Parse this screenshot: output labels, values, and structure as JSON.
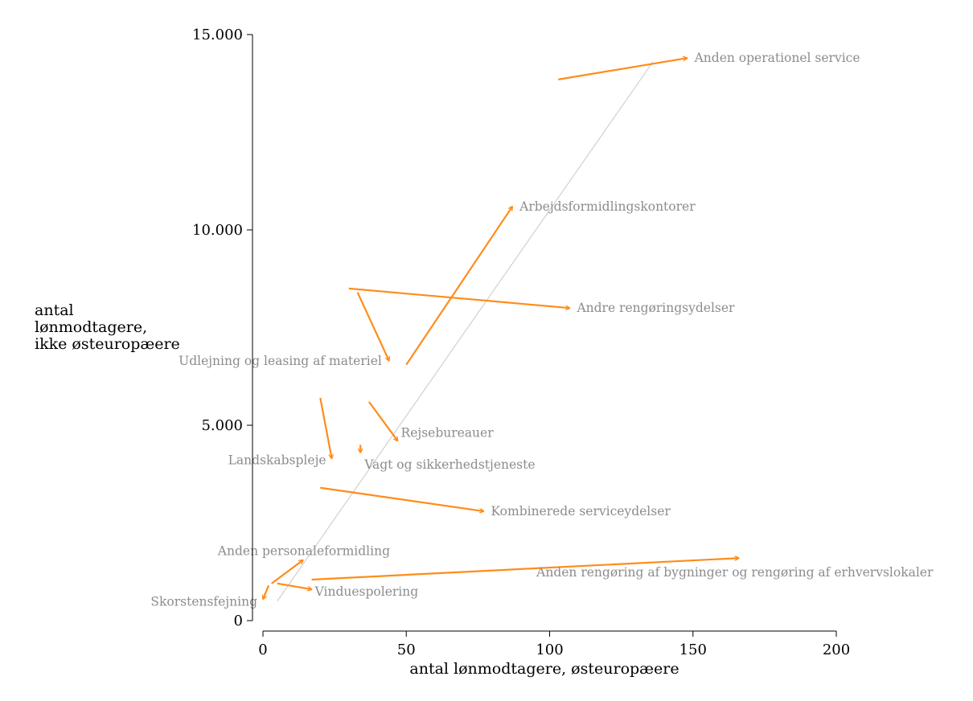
{
  "chart_data": {
    "type": "scatter",
    "subtype": "arrow-plot",
    "title": "",
    "xlabel": "antal lønmodtagere, østeuropæere",
    "ylabel_lines": [
      "antal",
      "lønmodtagere,",
      "ikke østeuropæere"
    ],
    "xlim": [
      -4,
      203
    ],
    "ylim": [
      -200,
      15400
    ],
    "x_ticks": [
      0,
      50,
      100,
      150,
      200
    ],
    "x_tick_labels": [
      "0",
      "50",
      "100",
      "150",
      "200"
    ],
    "y_ticks": [
      0,
      5000,
      10000,
      15000
    ],
    "y_tick_labels": [
      "0",
      "5.000",
      "10.000",
      "15.000"
    ],
    "grid": false,
    "colors": {
      "arrow": "#ff8c1a",
      "reference_line": "#c8c8c8",
      "label": "#8c8c8c",
      "axis": "#000000"
    },
    "reference_line": {
      "x": [
        5,
        136
      ],
      "y": [
        500,
        14300
      ]
    },
    "series": [
      {
        "label": "Anden operationel service",
        "x0": 103,
        "y0": 13850,
        "x1": 148,
        "y1": 14400,
        "label_side": "right"
      },
      {
        "label": "Arbejdsformidlingskontorer",
        "x0": 50,
        "y0": 6550,
        "x1": 87,
        "y1": 10600,
        "label_side": "right"
      },
      {
        "label": "Andre rengøringsydelser",
        "x0": 30,
        "y0": 8500,
        "x1": 107,
        "y1": 8000,
        "label_side": "right"
      },
      {
        "label": "Udlejning og leasing af materiel",
        "x0": 33,
        "y0": 8400,
        "x1": 44,
        "y1": 6650,
        "label_side": "left"
      },
      {
        "label": "Rejsebureauer",
        "x0": 37,
        "y0": 5600,
        "x1": 47,
        "y1": 4600,
        "label_side": "right"
      },
      {
        "label": "Vagt og sikkerhedstjeneste",
        "x0": 34,
        "y0": 4500,
        "x1": 34,
        "y1": 4300,
        "label_side": "below"
      },
      {
        "label": "Landskabspleje",
        "x0": 20,
        "y0": 5700,
        "x1": 24,
        "y1": 4150,
        "label_side": "left"
      },
      {
        "label": "Kombinerede serviceydelser",
        "x0": 20,
        "y0": 3400,
        "x1": 77,
        "y1": 2800,
        "label_side": "right"
      },
      {
        "label": "Anden personaleformidling",
        "x0": 3,
        "y0": 950,
        "x1": 14,
        "y1": 1550,
        "label_side": "above"
      },
      {
        "label": "Anden rengøring af bygninger og rengøring af erhvervslokaler",
        "x0": 17,
        "y0": 1050,
        "x1": 166,
        "y1": 1600,
        "label_side": "below"
      },
      {
        "label": "Vinduespolering",
        "x0": 5,
        "y0": 950,
        "x1": 17,
        "y1": 800,
        "label_side": "right"
      },
      {
        "label": "Skorstensfejning",
        "x0": 2,
        "y0": 900,
        "x1": 0,
        "y1": 550,
        "label_side": "left"
      }
    ]
  }
}
